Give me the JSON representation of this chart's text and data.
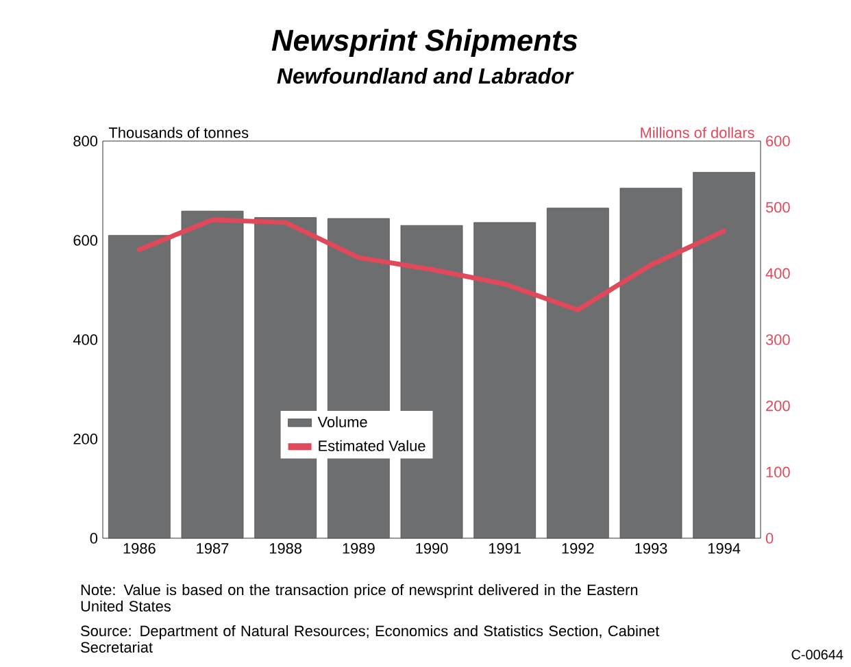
{
  "chart_data": {
    "type": "bar",
    "title": "Newsprint Shipments",
    "subtitle": "Newfoundland and Labrador",
    "ylabel": "Thousands of tonnes",
    "y2label": "Millions of dollars",
    "categories": [
      "1986",
      "1987",
      "1988",
      "1989",
      "1990",
      "1991",
      "1992",
      "1993",
      "1994"
    ],
    "series": [
      {
        "name": "Volume",
        "color": "#6d6e70",
        "values": [
          610,
          659,
          646,
          644,
          630,
          636,
          665,
          705,
          737
        ]
      },
      {
        "name": "Estimated Value",
        "type": "line",
        "axis": "y2",
        "color": "#e0495a",
        "values": [
          436,
          481,
          477,
          424,
          406,
          384,
          345,
          413,
          464
        ]
      }
    ],
    "ylim": [
      0,
      800
    ],
    "yticks": [
      0,
      200,
      400,
      600,
      800
    ],
    "y2lim": [
      0,
      600
    ],
    "y2ticks": [
      0,
      100,
      200,
      300,
      400,
      500,
      600
    ],
    "legend": "center left",
    "grid": false,
    "marker": "none",
    "line_style": "solid",
    "annotations": [
      "Note: Value is based on the transaction price of newsprint delivered in the Eastern United States",
      "Source: Department of Natural Resources; Economics and Statistics Section, Cabinet Secretariat",
      "C-00644"
    ]
  }
}
